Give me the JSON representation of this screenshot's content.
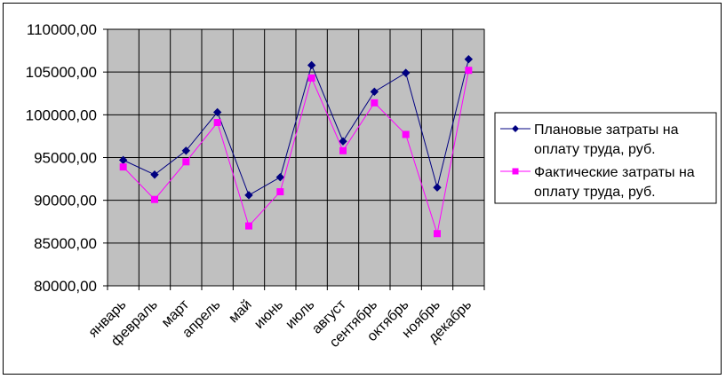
{
  "chart_data": {
    "type": "line",
    "categories": [
      "январь",
      "февраль",
      "март",
      "апрель",
      "май",
      "июнь",
      "июль",
      "август",
      "сентябрь",
      "октябрь",
      "ноябрь",
      "декабрь"
    ],
    "series": [
      {
        "name": "Плановые затраты на оплату труда, руб.",
        "name_lines": [
          "Плановые затраты на",
          "оплату труда, руб."
        ],
        "color": "#000080",
        "marker": "diamond",
        "values": [
          94700,
          93000,
          95800,
          100300,
          90600,
          92700,
          105800,
          96900,
          102700,
          104900,
          91500,
          106500
        ]
      },
      {
        "name": "Фактические затраты на оплату труда, руб.",
        "name_lines": [
          "Фактические затраты на",
          "оплату труда, руб."
        ],
        "color": "#ff00ff",
        "marker": "square",
        "values": [
          93900,
          90100,
          94500,
          99100,
          87000,
          91000,
          104300,
          95800,
          101400,
          97700,
          86100,
          105200
        ]
      }
    ],
    "ylim": [
      80000,
      110000
    ],
    "ytick_labels": [
      "110000,00",
      "105000,00",
      "100000,00",
      "95000,00",
      "90000,00",
      "85000,00",
      "80000,00"
    ],
    "ytick_values": [
      110000,
      105000,
      100000,
      95000,
      90000,
      85000,
      80000
    ],
    "grid": true,
    "plot_background": "#c0c0c0",
    "legend_position": "right"
  }
}
